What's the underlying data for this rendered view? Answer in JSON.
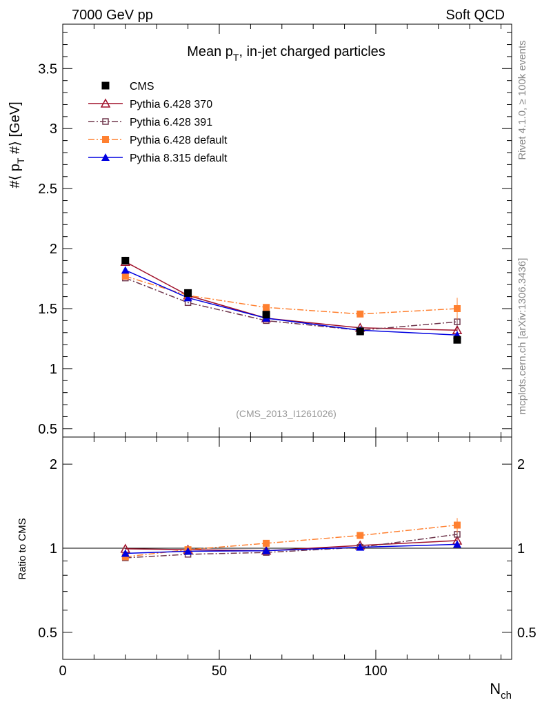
{
  "chart_data": {
    "type": "line",
    "header_left": "7000 GeV pp",
    "header_right": "Soft QCD",
    "title": "Mean p",
    "title_sub": "T",
    "title_rest": ", in-jet charged particles",
    "ylabel": "#⟨ p",
    "ylabel_sub": "T",
    "ylabel_rest": " #⟩ [GeV]",
    "ratio_ylabel": "Ratio to CMS",
    "xlabel": "N",
    "xlabel_sub": "ch",
    "analysis": "(CMS_2013_I1261026)",
    "side_top": "Rivet 4.1.0, ≥ 100k events",
    "side_bottom": "mcplots.cern.ch [arXiv:1306.3436]",
    "xlim": [
      0,
      143.4
    ],
    "ylim": [
      0.43,
      3.87
    ],
    "ratio_ylim": [
      0.4,
      2.5
    ],
    "ratio_scale": "log",
    "xticks": [
      "0",
      "50",
      "100"
    ],
    "yticks": [
      "0.5",
      "1",
      "1.5",
      "2",
      "2.5",
      "3",
      "3.5"
    ],
    "ratio_yticks": [
      "0.5",
      "1",
      "2"
    ],
    "legend_position": "top-left",
    "x": [
      20,
      40,
      65,
      95,
      126
    ],
    "series": [
      {
        "name": "CMS",
        "color": "#000000",
        "marker": "square",
        "line": "none",
        "values": [
          1.9,
          1.63,
          1.45,
          1.31,
          1.24
        ],
        "errors": [
          0.01,
          0.01,
          0.01,
          0.01,
          0.01
        ]
      },
      {
        "name": "Pythia 6.428 370",
        "color": "#a0102a",
        "marker": "triangle-open",
        "line": "solid",
        "values": [
          1.89,
          1.61,
          1.42,
          1.34,
          1.32
        ],
        "errors": [
          0.005,
          0.005,
          0.005,
          0.01,
          0.03
        ]
      },
      {
        "name": "Pythia 6.428 391",
        "color": "#70384e",
        "marker": "square-open",
        "line": "dashdot",
        "values": [
          1.755,
          1.55,
          1.4,
          1.32,
          1.39
        ],
        "errors": [
          0.005,
          0.005,
          0.005,
          0.01,
          0.04
        ]
      },
      {
        "name": "Pythia 6.428 default",
        "color": "#ff8030",
        "marker": "square",
        "line": "dashdot",
        "values": [
          1.77,
          1.61,
          1.51,
          1.455,
          1.5
        ],
        "errors": [
          0.005,
          0.005,
          0.005,
          0.01,
          0.09
        ]
      },
      {
        "name": "Pythia 8.315 default",
        "color": "#0000e0",
        "marker": "triangle",
        "line": "solid",
        "values": [
          1.82,
          1.59,
          1.42,
          1.32,
          1.28
        ],
        "errors": [
          0.005,
          0.005,
          0.005,
          0.01,
          0.02
        ]
      }
    ]
  }
}
